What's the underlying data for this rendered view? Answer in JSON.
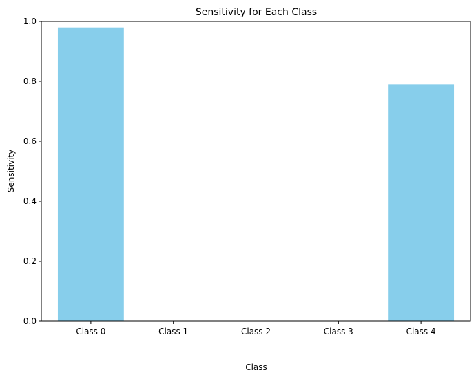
{
  "chart_data": {
    "type": "bar",
    "title": "Sensitivity for Each Class",
    "xlabel": "Class",
    "ylabel": "Sensitivity",
    "categories": [
      "Class 0",
      "Class 1",
      "Class 2",
      "Class 3",
      "Class 4"
    ],
    "values": [
      0.98,
      0.0,
      0.0,
      0.0,
      0.79
    ],
    "ylim": [
      0,
      1.0
    ],
    "yticks": [
      0.0,
      0.2,
      0.4,
      0.6,
      0.8,
      1.0
    ],
    "ytick_labels": [
      "0.0",
      "0.2",
      "0.4",
      "0.6",
      "0.8",
      "1.0"
    ],
    "bar_color": "#87ceeb",
    "grid": false
  }
}
